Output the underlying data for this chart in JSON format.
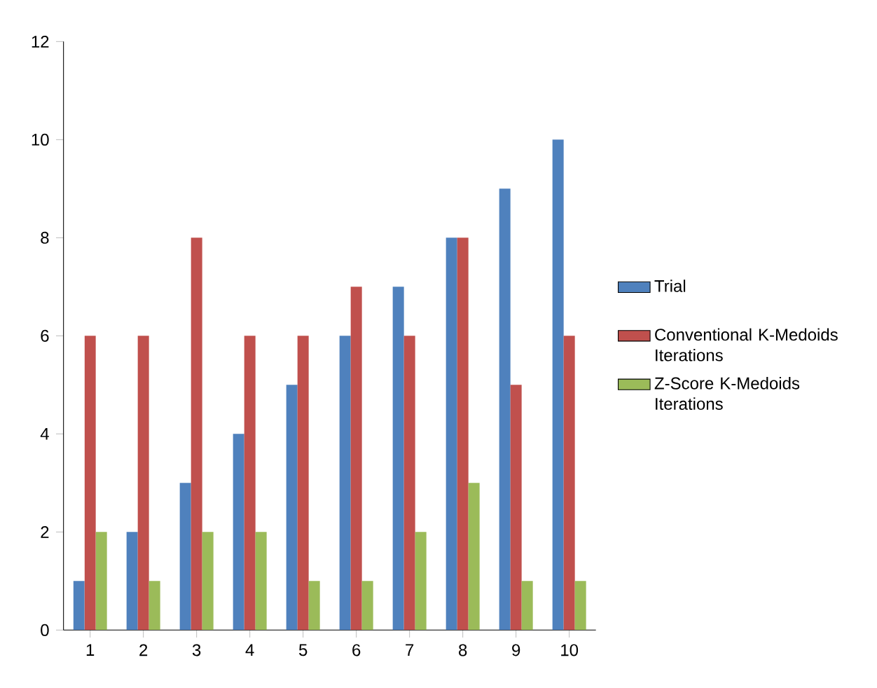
{
  "chart_data": {
    "type": "bar",
    "categories": [
      "1",
      "2",
      "3",
      "4",
      "5",
      "6",
      "7",
      "8",
      "9",
      "10"
    ],
    "series": [
      {
        "name": "Trial",
        "color": "#4f81bd",
        "values": [
          1,
          2,
          3,
          4,
          5,
          6,
          7,
          8,
          9,
          10
        ]
      },
      {
        "name": "Conventional K-Medoids Iterations",
        "color": "#c0504d",
        "values": [
          6,
          6,
          8,
          6,
          6,
          7,
          6,
          8,
          5,
          6
        ]
      },
      {
        "name": "Z-Score K-Medoids Iterations",
        "color": "#9bbb59",
        "values": [
          2,
          1,
          2,
          2,
          1,
          1,
          2,
          3,
          1,
          1
        ]
      }
    ],
    "ylim": [
      0,
      12
    ],
    "yticks": [
      0,
      2,
      4,
      6,
      8,
      10,
      12
    ],
    "legend": "right"
  }
}
